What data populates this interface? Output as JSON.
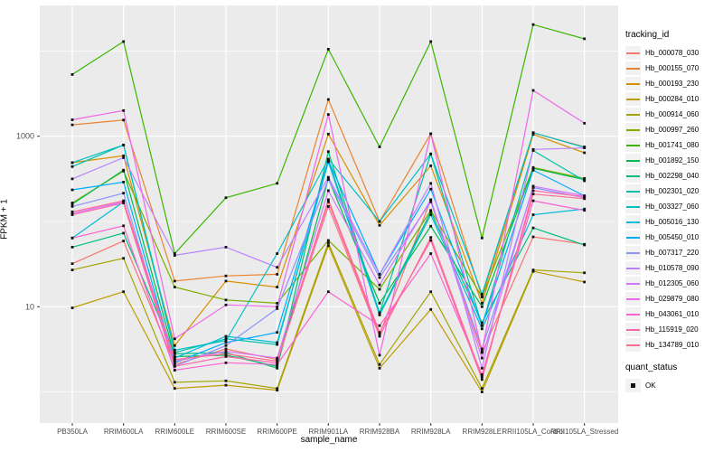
{
  "chart_data": {
    "type": "line",
    "xlabel": "sample_name",
    "ylabel": "FPKM + 1",
    "x_categories": [
      "PB350LA",
      "RRIM600LA",
      "RRIM600LE",
      "RRIM600SE",
      "RRIM600PE",
      "RRIM901LA",
      "RRIM928BA",
      "RRIM928LA",
      "RRIM928LE",
      "RRII105LA_Control",
      "RRII105LA_Stressed"
    ],
    "y_scale": "log10",
    "y_ticks": [
      10,
      1000
    ],
    "y_minor_ticks": [
      1,
      100,
      10000
    ],
    "ylim": [
      0.5,
      32000
    ],
    "grid": true,
    "panel_bg": "#EBEBEB",
    "grid_color": "#FFFFFF",
    "tick_label_color": "#4D4D4D",
    "point_shape": "black-square",
    "legend_title": "tracking_id",
    "point_legend": {
      "title": "quant_status",
      "items": [
        {
          "label": "OK",
          "shape": "black-square"
        }
      ]
    },
    "series": [
      {
        "name": "Hb_000078_030",
        "color": "#F8766D",
        "values": [
          32,
          59,
          2.1,
          3.2,
          2.4,
          170,
          4.7,
          180,
          2.9,
          66,
          54
        ]
      },
      {
        "name": "Hb_000155_070",
        "color": "#EA8331",
        "values": [
          1360,
          1550,
          20,
          23,
          24,
          2700,
          100,
          1070,
          13,
          1100,
          750
        ]
      },
      {
        "name": "Hb_000193_230",
        "color": "#D89000",
        "values": [
          490,
          590,
          3.5,
          20,
          17,
          1060,
          90,
          450,
          11,
          1050,
          640
        ]
      },
      {
        "name": "Hb_000284_010",
        "color": "#C09B00",
        "values": [
          9.7,
          15,
          1.1,
          1.2,
          1.05,
          52,
          1.9,
          9.3,
          1.0,
          26,
          19.5
        ]
      },
      {
        "name": "Hb_000914_060",
        "color": "#A3A500",
        "values": [
          27,
          37,
          1.3,
          1.35,
          1.1,
          56,
          2.1,
          15,
          1.1,
          27,
          25
        ]
      },
      {
        "name": "Hb_000997_260",
        "color": "#7CAE00",
        "values": [
          165,
          390,
          17,
          12,
          11,
          60,
          16,
          135,
          13,
          430,
          320
        ]
      },
      {
        "name": "Hb_001741_080",
        "color": "#39B600",
        "values": [
          5300,
          12900,
          42,
          190,
          280,
          10500,
          750,
          12900,
          64,
          20400,
          13900
        ]
      },
      {
        "name": "Hb_001892_150",
        "color": "#00BB4E",
        "values": [
          160,
          400,
          2.6,
          2.7,
          2.0,
          320,
          11,
          88,
          10,
          420,
          310
        ]
      },
      {
        "name": "Hb_002298_040",
        "color": "#00BF7D",
        "values": [
          50,
          73,
          2.8,
          2.9,
          1.9,
          660,
          8.3,
          130,
          6.5,
          84,
          53
        ]
      },
      {
        "name": "Hb_002301_020",
        "color": "#00C0A7",
        "values": [
          440,
          790,
          2.9,
          4.2,
          3.6,
          530,
          8.5,
          620,
          6.0,
          680,
          300
        ]
      },
      {
        "name": "Hb_003327_060",
        "color": "#00BFC4",
        "values": [
          490,
          790,
          3.1,
          4.0,
          42,
          540,
          100,
          620,
          14,
          1100,
          740
        ]
      },
      {
        "name": "Hb_005016_130",
        "color": "#00BBDA",
        "values": [
          64,
          170,
          2.5,
          4.5,
          3.8,
          500,
          8.0,
          120,
          5.5,
          120,
          140
        ]
      },
      {
        "name": "Hb_005450_010",
        "color": "#00ACFC",
        "values": [
          235,
          290,
          2.2,
          3.8,
          5.0,
          520,
          24,
          240,
          6.0,
          400,
          200
        ]
      },
      {
        "name": "Hb_007317_220",
        "color": "#8B93FF",
        "values": [
          150,
          215,
          2.0,
          3.5,
          9.5,
          310,
          22,
          170,
          3.2,
          250,
          190
        ]
      },
      {
        "name": "Hb_010578_090",
        "color": "#B983FF",
        "values": [
          316,
          560,
          40,
          50,
          29,
          330,
          24,
          280,
          1.9,
          700,
          730
        ]
      },
      {
        "name": "Hb_012305_060",
        "color": "#D575FE",
        "values": [
          125,
          170,
          2.3,
          3.0,
          2.5,
          230,
          18,
          180,
          2.5,
          260,
          200
        ]
      },
      {
        "name": "Hb_029879_080",
        "color": "#EF67EB",
        "values": [
          1560,
          2000,
          4.2,
          10.5,
          10,
          1800,
          2.7,
          1070,
          3.0,
          3450,
          1420
        ]
      },
      {
        "name": "Hb_043061_010",
        "color": "#FD61D3",
        "values": [
          64,
          89,
          1.8,
          2.2,
          2.1,
          15,
          6.0,
          42,
          1.6,
          175,
          135
        ]
      },
      {
        "name": "Hb_115919_020",
        "color": "#FF65AC",
        "values": [
          120,
          165,
          2.0,
          2.6,
          2.2,
          180,
          5.0,
          60,
          1.4,
          230,
          195
        ]
      },
      {
        "name": "Hb_134789_010",
        "color": "#FF6C91",
        "values": [
          130,
          175,
          2.4,
          2.8,
          2.3,
          150,
          4.5,
          65,
          1.5,
          210,
          185
        ]
      }
    ]
  }
}
